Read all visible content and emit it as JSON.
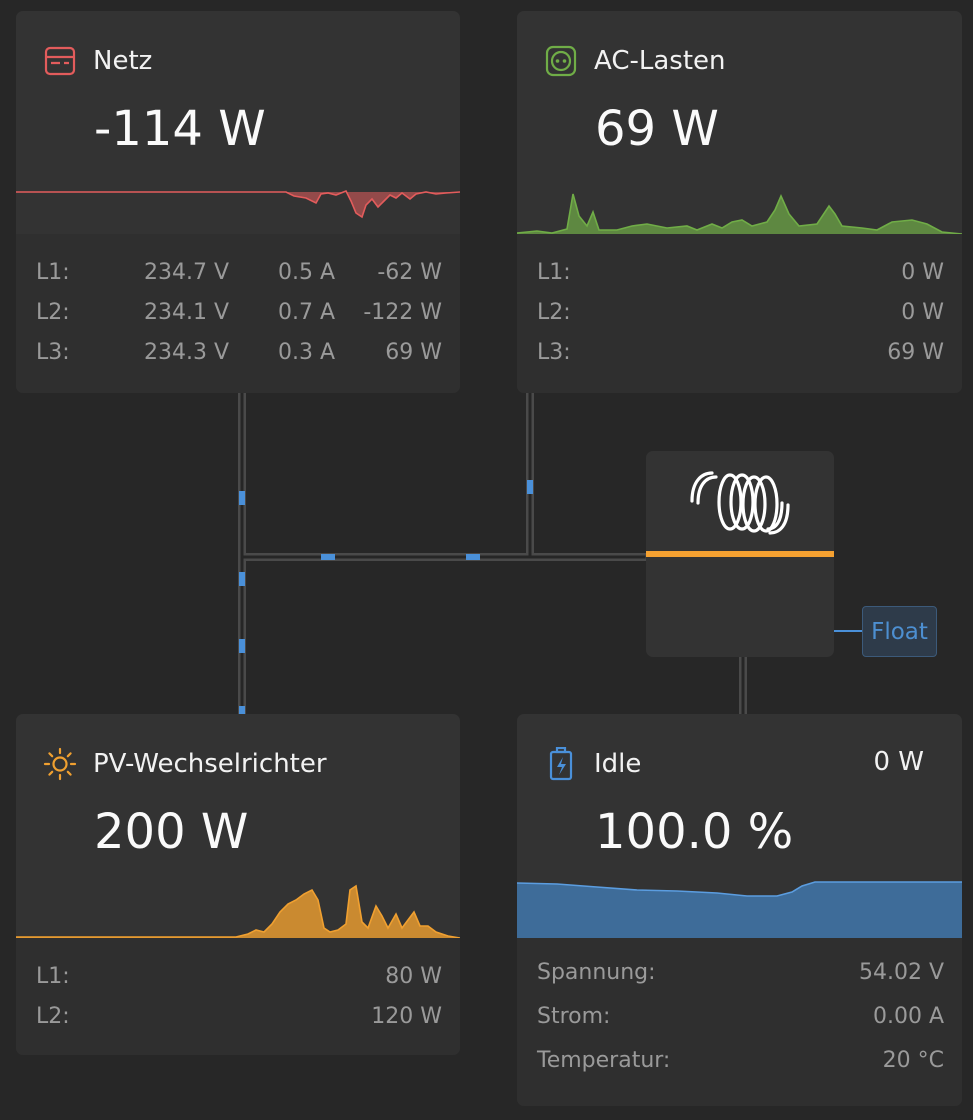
{
  "grid": {
    "title": "Netz",
    "power": "-114 W",
    "icon": "grid-meter-icon",
    "color": "#e35c5c",
    "phases": [
      {
        "label": "L1:",
        "voltage": "234.7 V",
        "current": "0.5 A",
        "power": "-62 W"
      },
      {
        "label": "L2:",
        "voltage": "234.1 V",
        "current": "0.7 A",
        "power": "-122 W"
      },
      {
        "label": "L3:",
        "voltage": "234.3 V",
        "current": "0.3 A",
        "power": "69 W"
      }
    ]
  },
  "ac_loads": {
    "title": "AC-Lasten",
    "power": "69 W",
    "icon": "ac-socket-icon",
    "color": "#70ad47",
    "phases": [
      {
        "label": "L1:",
        "power": "0 W"
      },
      {
        "label": "L2:",
        "power": "0 W"
      },
      {
        "label": "L3:",
        "power": "69 W"
      }
    ]
  },
  "pv_inverter": {
    "title": "PV-Wechselrichter",
    "power": "200 W",
    "icon": "sun-icon",
    "color": "#f0a030",
    "phases": [
      {
        "label": "L1:",
        "power": "80 W"
      },
      {
        "label": "L2:",
        "power": "120 W"
      }
    ]
  },
  "battery": {
    "title": "Idle",
    "power": "0 W",
    "soc": "100.0 %",
    "icon": "battery-charging-icon",
    "color": "#4a90d9",
    "rows": [
      {
        "label": "Spannung:",
        "value": "54.02 V"
      },
      {
        "label": "Strom:",
        "value": "0.00 A"
      },
      {
        "label": "Temperatur:",
        "value": "20 °C"
      }
    ]
  },
  "inverter": {
    "icon": "victron-logo-icon",
    "state_badge": "Float",
    "accent": "#f5a131"
  },
  "flow": {
    "line_color": "#3d3d3d",
    "dot_color": "#4a90d9"
  }
}
